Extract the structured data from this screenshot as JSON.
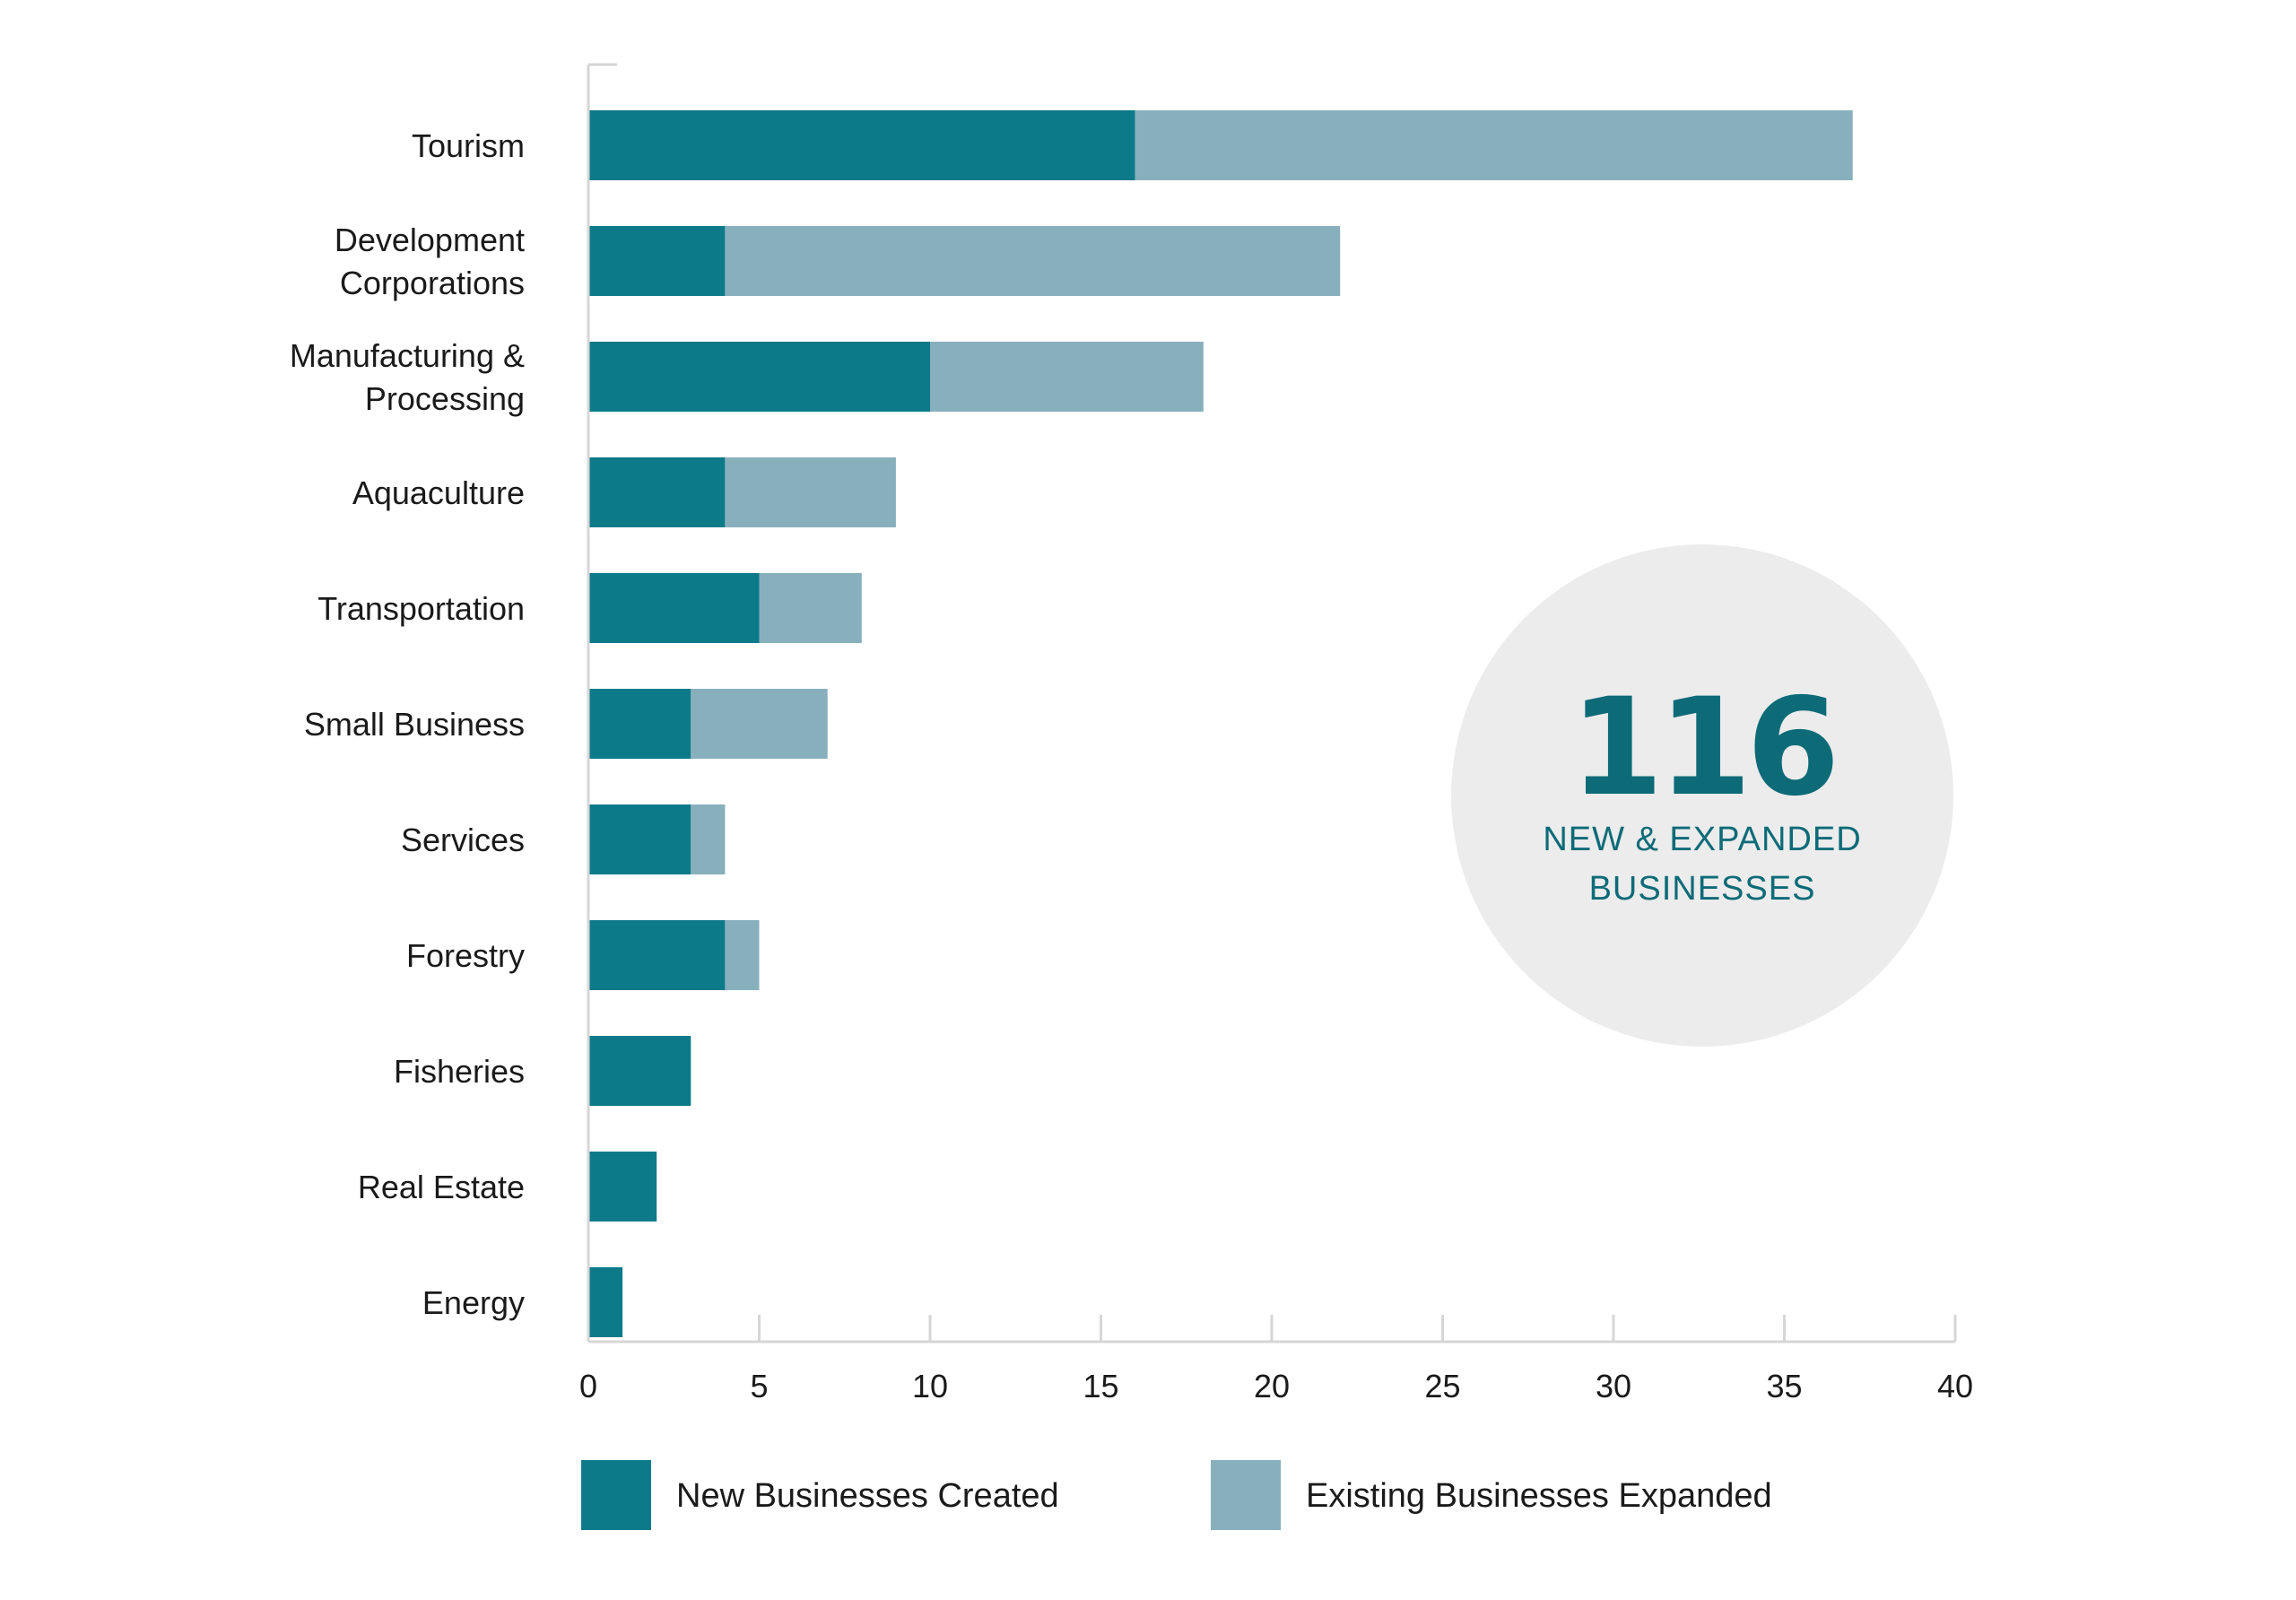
{
  "chart_data": {
    "type": "bar",
    "orientation": "horizontal",
    "stacked": true,
    "categories": [
      [
        "Tourism"
      ],
      [
        "Development",
        "Corporations"
      ],
      [
        "Manufacturing &",
        "Processing"
      ],
      [
        "Aquaculture"
      ],
      [
        "Transportation"
      ],
      [
        "Small Business"
      ],
      [
        "Services"
      ],
      [
        "Forestry"
      ],
      [
        "Fisheries"
      ],
      [
        "Real Estate"
      ],
      [
        "Energy"
      ]
    ],
    "series": [
      {
        "name": "New Businesses Created",
        "color": "#0d7a8a",
        "values": [
          16,
          4,
          10,
          4,
          5,
          3,
          3,
          4,
          3,
          2,
          1
        ]
      },
      {
        "name": "Existing Businesses Expanded",
        "color": "#87b0bc",
        "values": [
          21,
          18,
          8,
          5,
          3,
          4,
          1,
          1,
          0,
          0,
          0
        ]
      }
    ],
    "xlim": [
      0,
      40
    ],
    "xticks": [
      0,
      5,
      10,
      15,
      20,
      25,
      30,
      35,
      40
    ],
    "grid": false,
    "legend_position": "bottom",
    "title": "",
    "xlabel": "",
    "ylabel": ""
  },
  "callout": {
    "number": "116",
    "line1": "NEW & EXPANDED",
    "line2": "BUSINESSES",
    "text_color": "#0d6b78",
    "circle_color": "#ececec"
  },
  "colors": {
    "axis": "#d6d6d6"
  }
}
